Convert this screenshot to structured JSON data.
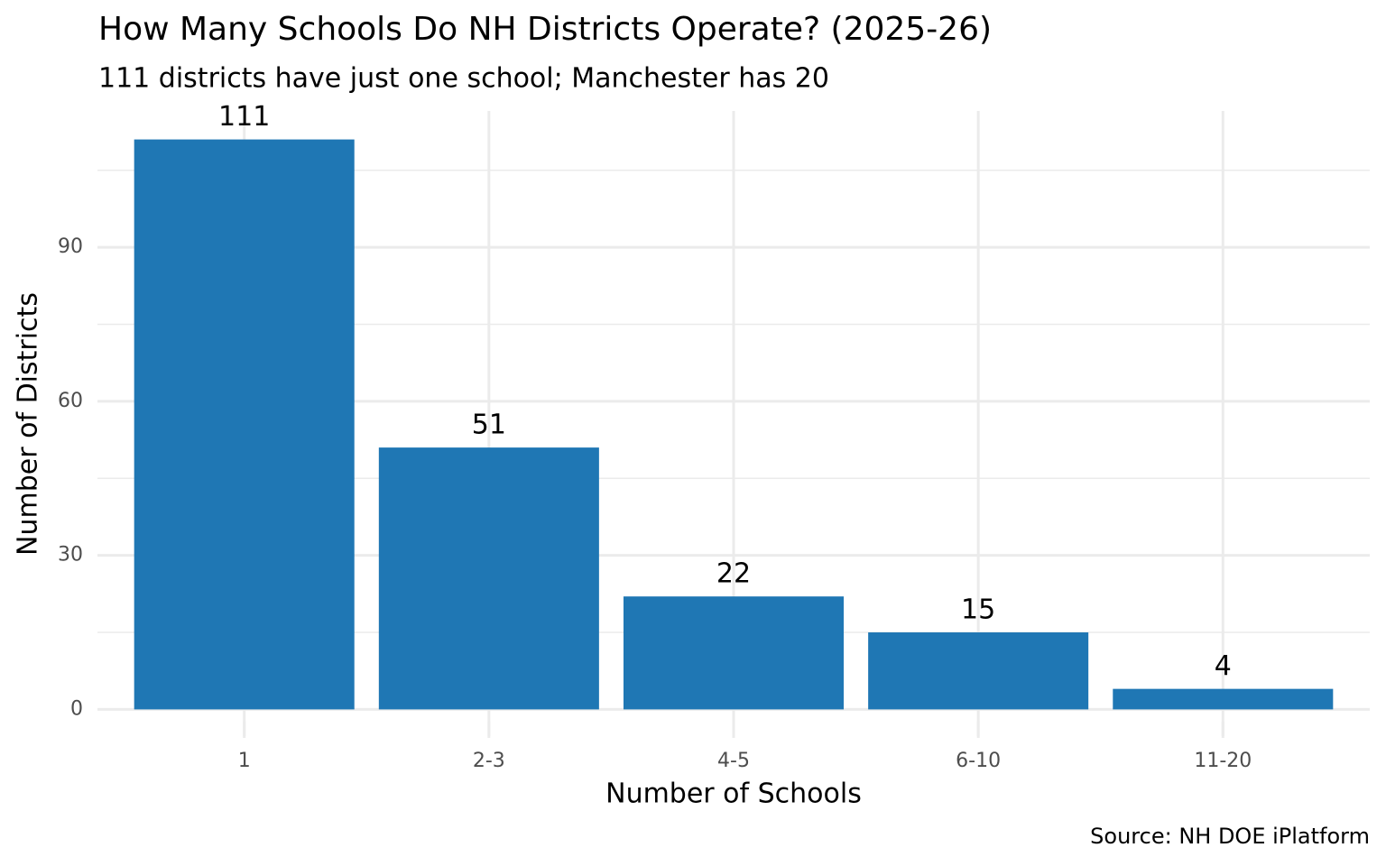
{
  "chart_data": {
    "type": "bar",
    "title": "How Many Schools Do NH Districts Operate? (2025-26)",
    "subtitle": "111 districts have just one school; Manchester has 20",
    "x_label": "Number of Schools",
    "y_label": "Number of Districts",
    "caption": "Source: NH DOE iPlatform",
    "categories": [
      "1",
      "2-3",
      "4-5",
      "6-10",
      "11-20"
    ],
    "values": [
      111,
      51,
      22,
      15,
      4
    ],
    "color": "#1f77b4",
    "ylim": [
      -5.55,
      116.55
    ],
    "yticks": [
      0,
      30,
      60,
      90
    ],
    "minor_yticks": [
      15,
      45,
      75,
      105
    ],
    "grid": true
  }
}
